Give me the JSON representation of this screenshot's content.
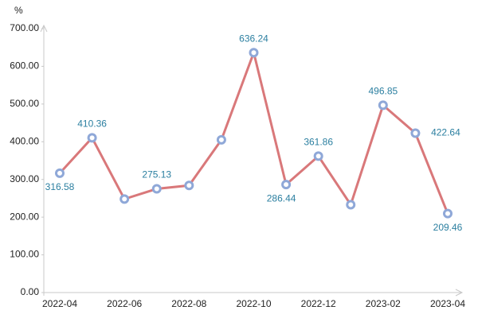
{
  "chart_data": {
    "type": "line",
    "y_label": "%",
    "categories": [
      "2022-04",
      null,
      "2022-06",
      null,
      "2022-08",
      null,
      "2022-10",
      null,
      "2022-12",
      null,
      "2023-02",
      null,
      "2023-04"
    ],
    "series": [
      {
        "name": "value",
        "color": "#d9787a",
        "marker_color": "#8fa8d8",
        "values": [
          316.58,
          410.36,
          248,
          275.13,
          284,
          405,
          636.24,
          286.44,
          361.86,
          233,
          496.85,
          422.64,
          209.46
        ],
        "value_labels": [
          "316.58",
          "410.36",
          null,
          "275.13",
          null,
          null,
          "636.24",
          "286.44",
          "361.86",
          null,
          "496.85",
          "422.64",
          "209.46"
        ]
      }
    ],
    "ylim": [
      0,
      700
    ],
    "yticks": [
      {
        "value": 0,
        "label": "0.00"
      },
      {
        "value": 100,
        "label": "100.00"
      },
      {
        "value": 200,
        "label": "200.00"
      },
      {
        "value": 300,
        "label": "300.00"
      },
      {
        "value": 400,
        "label": "400.00"
      },
      {
        "value": 500,
        "label": "500.00"
      },
      {
        "value": 600,
        "label": "600.00"
      },
      {
        "value": 700,
        "label": "700.00"
      }
    ],
    "grid": false
  }
}
